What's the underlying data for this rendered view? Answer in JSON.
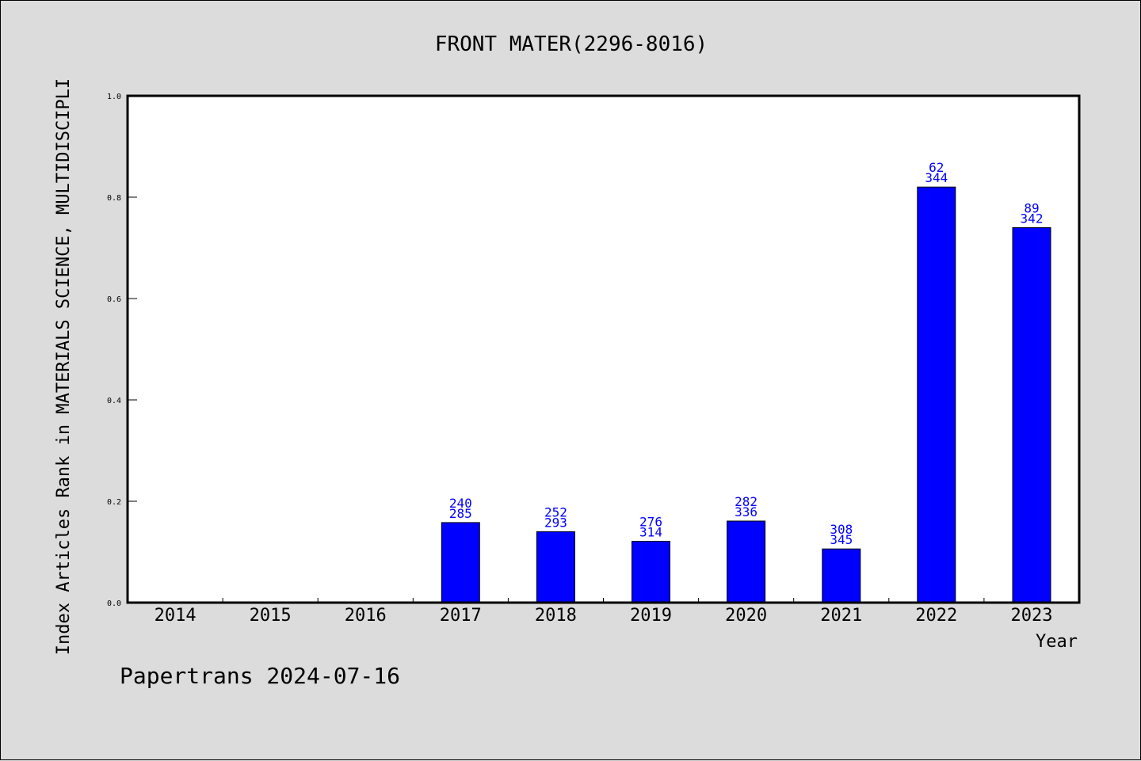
{
  "chart_data": {
    "type": "bar",
    "title": "FRONT MATER(2296-8016)",
    "xlabel": "Year",
    "ylabel": "Index Articles Rank in MATERIALS SCIENCE, MULTIDISCIPLI",
    "categories": [
      "2014",
      "2015",
      "2016",
      "2017",
      "2018",
      "2019",
      "2020",
      "2021",
      "2022",
      "2023"
    ],
    "values": [
      null,
      null,
      null,
      0.158,
      0.14,
      0.121,
      0.161,
      0.106,
      0.82,
      0.74
    ],
    "labels_top": [
      "",
      "",
      "",
      "240",
      "252",
      "276",
      "282",
      "308",
      "62",
      "89"
    ],
    "labels_bottom": [
      "",
      "",
      "",
      "285",
      "293",
      "314",
      "336",
      "345",
      "344",
      "342"
    ],
    "ylim": [
      0,
      1.0
    ],
    "yticks": [
      "0.0",
      "0.2",
      "0.4",
      "0.6",
      "0.8",
      "1.0"
    ],
    "bar_color": "#0000ff",
    "label_color": "#0000ff",
    "background": "#dcdcdc",
    "plot_background": "#ffffff",
    "grid": false,
    "legend": "none"
  },
  "footer": "Papertrans 2024-07-16"
}
